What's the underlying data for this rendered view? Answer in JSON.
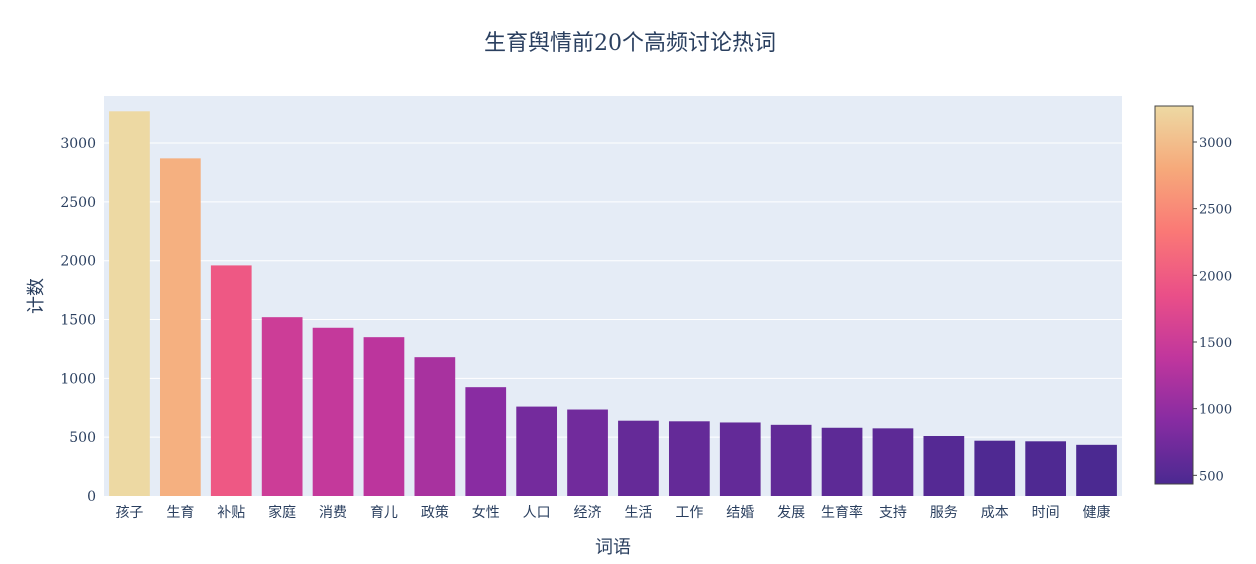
{
  "chart_data": {
    "type": "bar",
    "title": "生育舆情前20个高频讨论热词",
    "xlabel": "词语",
    "ylabel": "计数",
    "categories": [
      "孩子",
      "生育",
      "补贴",
      "家庭",
      "消费",
      "育儿",
      "政策",
      "女性",
      "人口",
      "经济",
      "生活",
      "工作",
      "结婚",
      "发展",
      "生育率",
      "支持",
      "服务",
      "成本",
      "时间",
      "健康"
    ],
    "values": [
      3270,
      2870,
      1960,
      1520,
      1430,
      1350,
      1180,
      925,
      760,
      735,
      640,
      635,
      625,
      605,
      580,
      575,
      510,
      470,
      465,
      435
    ],
    "ylim": [
      0,
      3400
    ],
    "yticks": [
      0,
      500,
      1000,
      1500,
      2000,
      2500,
      3000
    ],
    "grid": true,
    "colorscale": "magma-like",
    "colorbar": {
      "range": [
        435,
        3270
      ],
      "ticks": [
        500,
        1000,
        1500,
        2000,
        2500,
        3000
      ]
    },
    "colors": {
      "plot_bg": "#e5ecf6",
      "grid": "#ffffff",
      "text": "#2a3f5f",
      "scale": [
        "#4b2991",
        "#872ca2",
        "#c0369d",
        "#ea4f88",
        "#fa7876",
        "#f6a97a",
        "#edd9a3"
      ]
    }
  }
}
